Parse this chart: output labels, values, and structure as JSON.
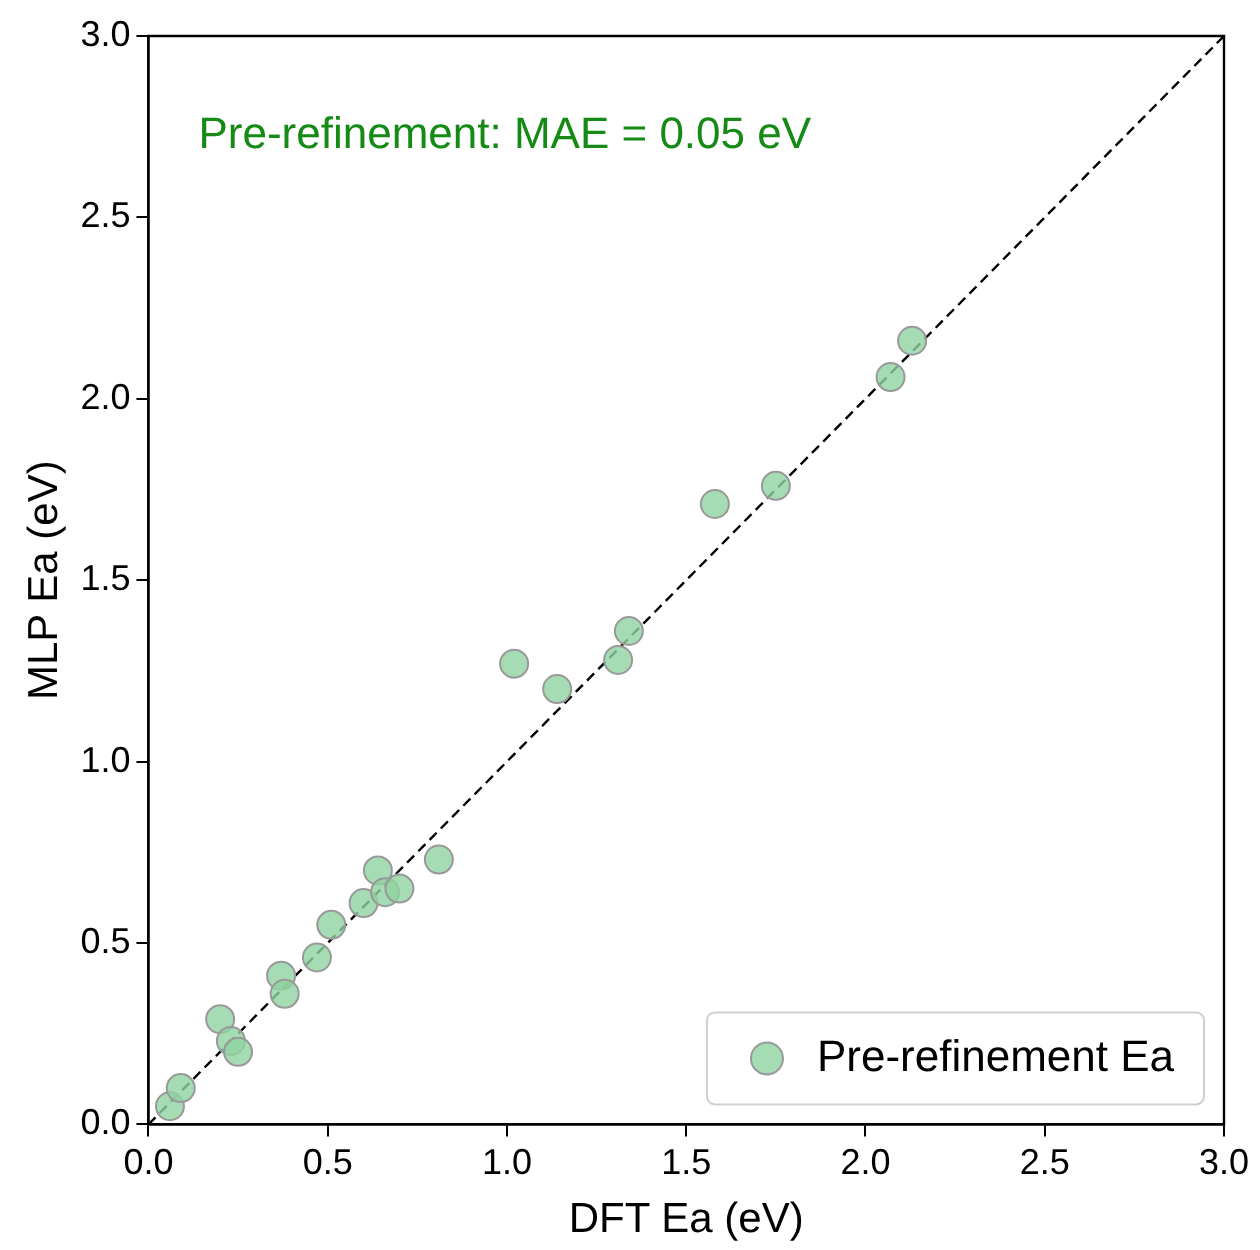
{
  "chart_data": {
    "type": "scatter",
    "xlabel": "DFT Ea (eV)",
    "ylabel": "MLP Ea (eV)",
    "annotations": [
      "Pre-refinement: MAE = 0.05 eV"
    ],
    "xlim": [
      0,
      3
    ],
    "ylim": [
      0,
      3
    ],
    "xticks": [
      {
        "value": 0,
        "label": "0.0"
      },
      0.5,
      {
        "value": 1,
        "label": "1.0"
      },
      1.5,
      {
        "value": 2,
        "label": "2.0"
      },
      2.5,
      {
        "value": 3,
        "label": "3.0"
      }
    ],
    "yticks": [
      {
        "value": 0,
        "label": "0.0"
      },
      0.5,
      {
        "value": 1,
        "label": "1.0"
      },
      1.5,
      {
        "value": 2,
        "label": "2.0"
      },
      2.5,
      {
        "value": 3,
        "label": "3.0"
      }
    ],
    "grid": false,
    "legend": "bottom right",
    "series": [
      {
        "name": "Pre-refinement Ea",
        "color": "#8fd3a0",
        "marker": "circle",
        "x": [
          0.06,
          0.09,
          0.2,
          0.23,
          0.25,
          0.37,
          0.38,
          0.47,
          0.51,
          0.6,
          0.64,
          0.66,
          0.7,
          0.81,
          1.02,
          1.14,
          1.31,
          1.34,
          1.58,
          1.75,
          2.07,
          2.13
        ],
        "values": [
          0.05,
          0.1,
          0.29,
          0.23,
          0.2,
          0.41,
          0.36,
          0.46,
          0.55,
          0.61,
          0.7,
          0.64,
          0.65,
          0.73,
          1.27,
          1.2,
          1.28,
          1.36,
          1.71,
          1.76,
          2.06,
          2.16
        ]
      },
      {
        "type": "line",
        "color": "#000000",
        "marker": "none",
        "line_style": "dashed",
        "x": [
          0,
          3
        ],
        "values": [
          0,
          3
        ]
      }
    ]
  }
}
